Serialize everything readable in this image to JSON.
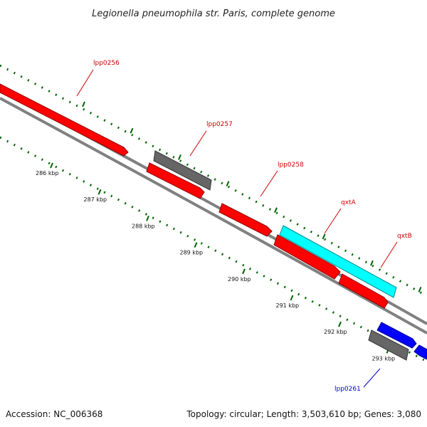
{
  "title": "Legionella pneumophila str. Paris, complete genome",
  "footer": {
    "accession": "Accession: NC_006368",
    "info": "Topology: circular; Length: 3,503,610 bp; Genes: 3,080"
  },
  "colors": {
    "forward_gene": "#ff0000",
    "rna_or_other": "#666666",
    "highlight_gene": "#00ffff",
    "reverse_gene": "#0000ff",
    "backbone": "#808080",
    "ticks": "#006400",
    "forward_label": "#cc0000",
    "reverse_label": "#0000cc"
  },
  "ticks": [
    {
      "kbp": 286,
      "label": "286 kbp"
    },
    {
      "kbp": 287,
      "label": "287 kbp"
    },
    {
      "kbp": 288,
      "label": "288 kbp"
    },
    {
      "kbp": 289,
      "label": "289 kbp"
    },
    {
      "kbp": 290,
      "label": "290 kbp"
    },
    {
      "kbp": 291,
      "label": "291 kbp"
    },
    {
      "kbp": 292,
      "label": "292 kbp"
    },
    {
      "kbp": 293,
      "label": "293 kbp"
    }
  ],
  "genes": [
    {
      "label": "lpp0256",
      "strand": "forward",
      "color": "red"
    },
    {
      "label": "lpp0257",
      "strand": "forward",
      "color": "gray"
    },
    {
      "label": "lpp0258",
      "strand": "forward",
      "color": "red"
    },
    {
      "label": "qxtA",
      "strand": "forward",
      "color": "cyan"
    },
    {
      "label": "qxtB",
      "strand": "forward",
      "color": "red"
    },
    {
      "label": "lpp0261",
      "strand": "reverse",
      "color": "gray"
    }
  ]
}
